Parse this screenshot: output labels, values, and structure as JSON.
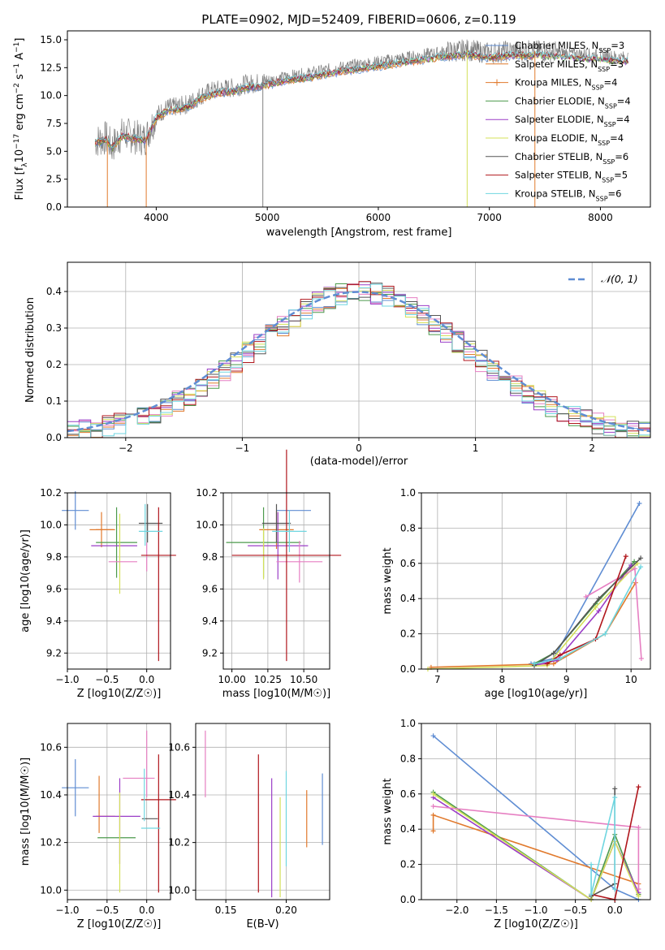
{
  "colors": {
    "Chabrier MILES": "#5f8dd3",
    "Salpeter MILES": "#e17a2d",
    "Kroupa MILES": "#e17a2d",
    "Chabrier ELODIE": "#4c9a4c",
    "Salpeter ELODIE": "#9b3ec7",
    "Kroupa ELODIE": "#d4e05a",
    "Chabrier STELIB": "#555555",
    "Salpeter STELIB": "#b0161c",
    "Kroupa STELIB": "#6fd6e0",
    "pink": "#e67fc2",
    "grey_model": "#808080"
  },
  "chart_data": [
    {
      "type": "line",
      "title": "PLATE=0902, MJD=52409, FIBERID=0606, z=0.119",
      "xlabel": "wavelength [Angstrom, rest frame]",
      "ylabel": "Flux [f_λ10^-17 erg cm^-2 s^-1 A^-1]",
      "xlim": [
        3200,
        8450
      ],
      "ylim": [
        0,
        15.8
      ],
      "xticks": [
        "4000",
        "5000",
        "6000",
        "7000",
        "8000"
      ],
      "yticks": [
        "0.0",
        "2.5",
        "5.0",
        "7.5",
        "10.0",
        "12.5",
        "15.0"
      ],
      "legend": [
        "Chabrier MILES, N_SSP=3",
        "Salpeter MILES, N_SSP=3",
        "Kroupa MILES, N_SSP=4",
        "Chabrier ELODIE, N_SSP=4",
        "Salpeter ELODIE, N_SSP=4",
        "Kroupa ELODIE, N_SSP=4",
        "Chabrier STELIB, N_SSP=6",
        "Salpeter STELIB, N_SSP=5",
        "Kroupa STELIB, N_SSP=6"
      ],
      "legend_position": "right",
      "series_spectrum_x": [
        3450,
        3550,
        3600,
        3700,
        3800,
        3900,
        4000,
        4100,
        4200,
        4300,
        4400,
        4500,
        4600,
        4700,
        4800,
        4900,
        5000,
        5200,
        5400,
        5600,
        5800,
        6000,
        6200,
        6400,
        6600,
        6800,
        7000,
        7200,
        7400,
        7600,
        7800,
        8000,
        8200
      ],
      "series_spectrum_y": [
        5.9,
        6.2,
        5.4,
        6.6,
        6.3,
        6.1,
        8.2,
        8.9,
        9.0,
        9.3,
        10.0,
        10.4,
        10.6,
        10.7,
        11.0,
        11.1,
        11.3,
        11.7,
        12.0,
        12.4,
        12.7,
        13.0,
        13.3,
        13.6,
        13.9,
        14.1,
        13.8,
        14.0,
        14.0,
        13.9,
        13.7,
        13.6,
        13.4
      ]
    },
    {
      "type": "line",
      "xlabel": "(data-model)/error",
      "ylabel": "Normed distribution",
      "xlim": [
        -2.5,
        2.5
      ],
      "ylim": [
        0,
        0.48
      ],
      "xticks": [
        "−2",
        "−1",
        "0",
        "1",
        "2"
      ],
      "yticks": [
        "0.0",
        "0.1",
        "0.2",
        "0.3",
        "0.4"
      ],
      "legend": [
        "𝒩(0, 1)"
      ],
      "legend_position": "top-right"
    },
    {
      "type": "scatter",
      "xlabel": "Z [log10(Z/Z☉)]",
      "ylabel": "age  [log10(age/yr)]",
      "xlim": [
        -1.0,
        0.3
      ],
      "ylim": [
        9.1,
        10.2
      ],
      "xticks": [
        "−1.0",
        "−0.5",
        "0.0"
      ],
      "yticks": [
        "9.2",
        "9.4",
        "9.6",
        "9.8",
        "10.0",
        "10.2"
      ]
    },
    {
      "type": "scatter",
      "xlabel": "mass [log10(M/M☉)]",
      "xlim": [
        9.94,
        10.68
      ],
      "ylim": [
        9.1,
        10.2
      ],
      "xticks": [
        "10.00",
        "10.25",
        "10.50"
      ],
      "yticks": [
        "9.2",
        "9.4",
        "9.6",
        "9.8",
        "10.0",
        "10.2"
      ]
    },
    {
      "type": "line",
      "xlabel": "age  [log10(age/yr)]",
      "ylabel": "mass weight",
      "xlim": [
        6.75,
        10.3
      ],
      "ylim": [
        0,
        1.0
      ],
      "xticks": [
        "7",
        "8",
        "9",
        "10"
      ],
      "yticks": [
        "0.0",
        "0.2",
        "0.4",
        "0.6",
        "0.8",
        "1.0"
      ]
    },
    {
      "type": "scatter",
      "xlabel": "Z [log10(Z/Z☉)]",
      "ylabel": "mass [log10(M/M☉)]",
      "xlim": [
        -1.0,
        0.3
      ],
      "ylim": [
        9.96,
        10.7
      ],
      "xticks": [
        "−1.0",
        "−0.5",
        "0.0"
      ],
      "yticks": [
        "10.0",
        "10.2",
        "10.4",
        "10.6"
      ]
    },
    {
      "type": "scatter",
      "xlabel": "E(B-V)",
      "xlim": [
        0.125,
        0.236
      ],
      "ylim": [
        9.96,
        10.7
      ],
      "xticks": [
        "0.15",
        "0.20"
      ],
      "yticks": [
        "10.0",
        "10.2",
        "10.4",
        "10.6"
      ]
    },
    {
      "type": "line",
      "xlabel": "Z [log10(Z/Z☉)]",
      "ylabel": "mass weight",
      "xlim": [
        -2.45,
        0.45
      ],
      "ylim": [
        0,
        1.0
      ],
      "xticks": [
        "−2.0",
        "−1.5",
        "−1.0",
        "−0.5",
        "0.0"
      ],
      "yticks": [
        "0.0",
        "0.2",
        "0.4",
        "0.6",
        "0.8",
        "1.0"
      ]
    }
  ]
}
